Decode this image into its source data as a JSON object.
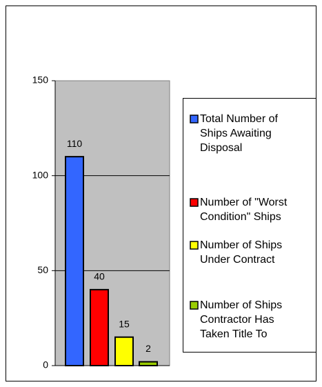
{
  "chart_data": {
    "type": "bar",
    "series": [
      {
        "name": "Total Number of Ships Awaiting Disposal",
        "color": "#3366ff",
        "values": [
          110
        ]
      },
      {
        "name": "Number of \"Worst Condition\" Ships",
        "color": "#ff0000",
        "values": [
          40
        ]
      },
      {
        "name": "Number of Ships Under Contract",
        "color": "#ffff00",
        "values": [
          15
        ]
      },
      {
        "name": "Number of Ships Contractor Has Taken Title To",
        "color": "#99cc00",
        "values": [
          2
        ]
      }
    ],
    "ylim": [
      0,
      150
    ],
    "yticks": [
      0,
      50,
      100,
      150
    ],
    "grid": true,
    "legend": "right"
  }
}
